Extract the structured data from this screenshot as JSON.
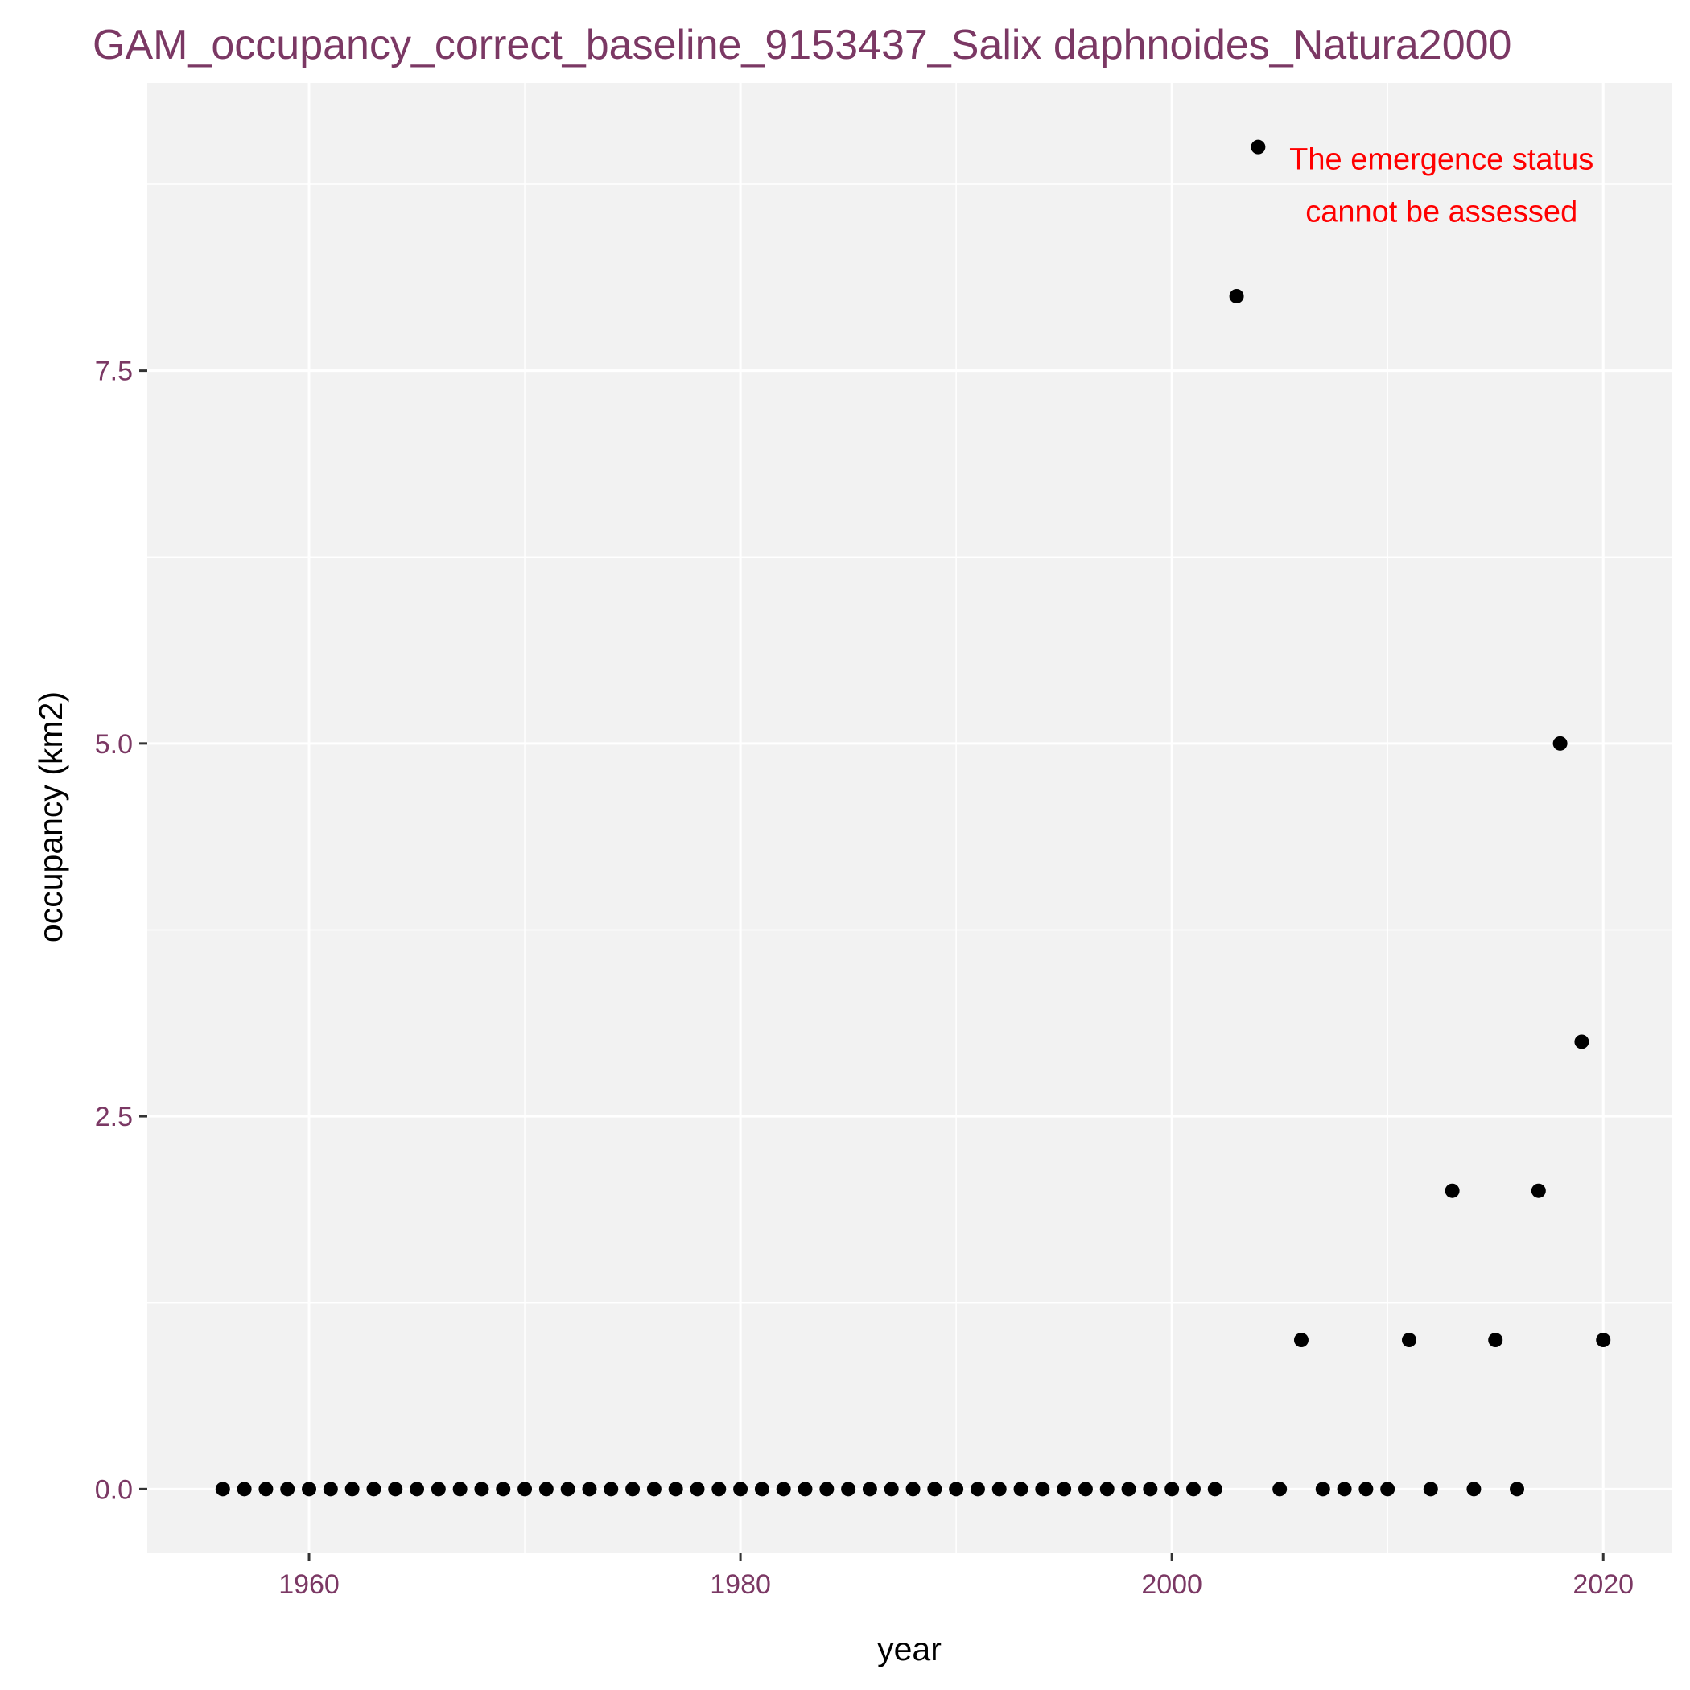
{
  "chart_data": {
    "type": "scatter",
    "title": "GAM_occupancy_correct_baseline_9153437_Salix daphnoides_Natura2000",
    "xlabel": "year",
    "ylabel": "occupancy (km2)",
    "xlim": [
      1952.5,
      2023.2
    ],
    "ylim": [
      -0.43,
      9.43
    ],
    "x_ticks": [
      1960,
      1980,
      2000,
      2020
    ],
    "x_tick_labels": [
      "1960",
      "1980",
      "2000",
      "2020"
    ],
    "y_ticks": [
      0,
      2.5,
      5,
      7.5
    ],
    "y_tick_labels": [
      "0.0",
      "2.5",
      "5.0",
      "7.5"
    ],
    "x_minor_ticks": [
      1970,
      1990,
      2010
    ],
    "y_minor_ticks": [
      1.25,
      3.75,
      6.25,
      8.75
    ],
    "grid": true,
    "annotation": {
      "lines": [
        "The emergence status",
        "cannot be assessed"
      ],
      "color": "#ff0000",
      "x": 2012.5,
      "y": 8.85
    },
    "colors": {
      "title": "#7b3864",
      "tick_label": "#7b3864",
      "panel": "#f2f2f2",
      "grid": "#ffffff",
      "point": "#000000"
    },
    "points": [
      [
        1956,
        0
      ],
      [
        1957,
        0
      ],
      [
        1958,
        0
      ],
      [
        1959,
        0
      ],
      [
        1960,
        0
      ],
      [
        1961,
        0
      ],
      [
        1962,
        0
      ],
      [
        1963,
        0
      ],
      [
        1964,
        0
      ],
      [
        1965,
        0
      ],
      [
        1966,
        0
      ],
      [
        1967,
        0
      ],
      [
        1968,
        0
      ],
      [
        1969,
        0
      ],
      [
        1970,
        0
      ],
      [
        1971,
        0
      ],
      [
        1972,
        0
      ],
      [
        1973,
        0
      ],
      [
        1974,
        0
      ],
      [
        1975,
        0
      ],
      [
        1976,
        0
      ],
      [
        1977,
        0
      ],
      [
        1978,
        0
      ],
      [
        1979,
        0
      ],
      [
        1980,
        0
      ],
      [
        1981,
        0
      ],
      [
        1982,
        0
      ],
      [
        1983,
        0
      ],
      [
        1984,
        0
      ],
      [
        1985,
        0
      ],
      [
        1986,
        0
      ],
      [
        1987,
        0
      ],
      [
        1988,
        0
      ],
      [
        1989,
        0
      ],
      [
        1990,
        0
      ],
      [
        1991,
        0
      ],
      [
        1992,
        0
      ],
      [
        1993,
        0
      ],
      [
        1994,
        0
      ],
      [
        1995,
        0
      ],
      [
        1996,
        0
      ],
      [
        1997,
        0
      ],
      [
        1998,
        0
      ],
      [
        1999,
        0
      ],
      [
        2000,
        0
      ],
      [
        2001,
        0
      ],
      [
        2002,
        0
      ],
      [
        2003,
        8
      ],
      [
        2004,
        9
      ],
      [
        2005,
        0
      ],
      [
        2006,
        1
      ],
      [
        2007,
        0
      ],
      [
        2008,
        0
      ],
      [
        2009,
        0
      ],
      [
        2010,
        0
      ],
      [
        2011,
        1
      ],
      [
        2012,
        0
      ],
      [
        2013,
        2
      ],
      [
        2014,
        0
      ],
      [
        2015,
        1
      ],
      [
        2016,
        0
      ],
      [
        2017,
        2
      ],
      [
        2018,
        5
      ],
      [
        2019,
        3
      ],
      [
        2020,
        1
      ]
    ]
  }
}
